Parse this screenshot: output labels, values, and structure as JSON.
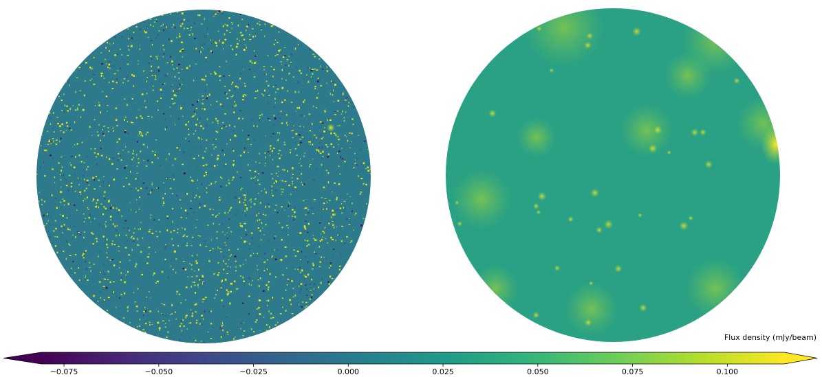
{
  "chart_data": {
    "type": "colorbar",
    "colorbar": {
      "label": "Flux density (mJy/beam)",
      "colormap": "viridis",
      "extend": "both",
      "lim": [
        -0.081,
        0.115
      ],
      "ticks": [
        {
          "value": -0.075,
          "label": "−0.075"
        },
        {
          "value": -0.05,
          "label": "−0.050"
        },
        {
          "value": -0.025,
          "label": "−0.025"
        },
        {
          "value": 0,
          "label": "0.000"
        },
        {
          "value": 0.025,
          "label": "0.025"
        },
        {
          "value": 0.05,
          "label": "0.050"
        },
        {
          "value": 0.075,
          "label": "0.075"
        },
        {
          "value": 0.1,
          "label": "0.100"
        }
      ]
    }
  }
}
